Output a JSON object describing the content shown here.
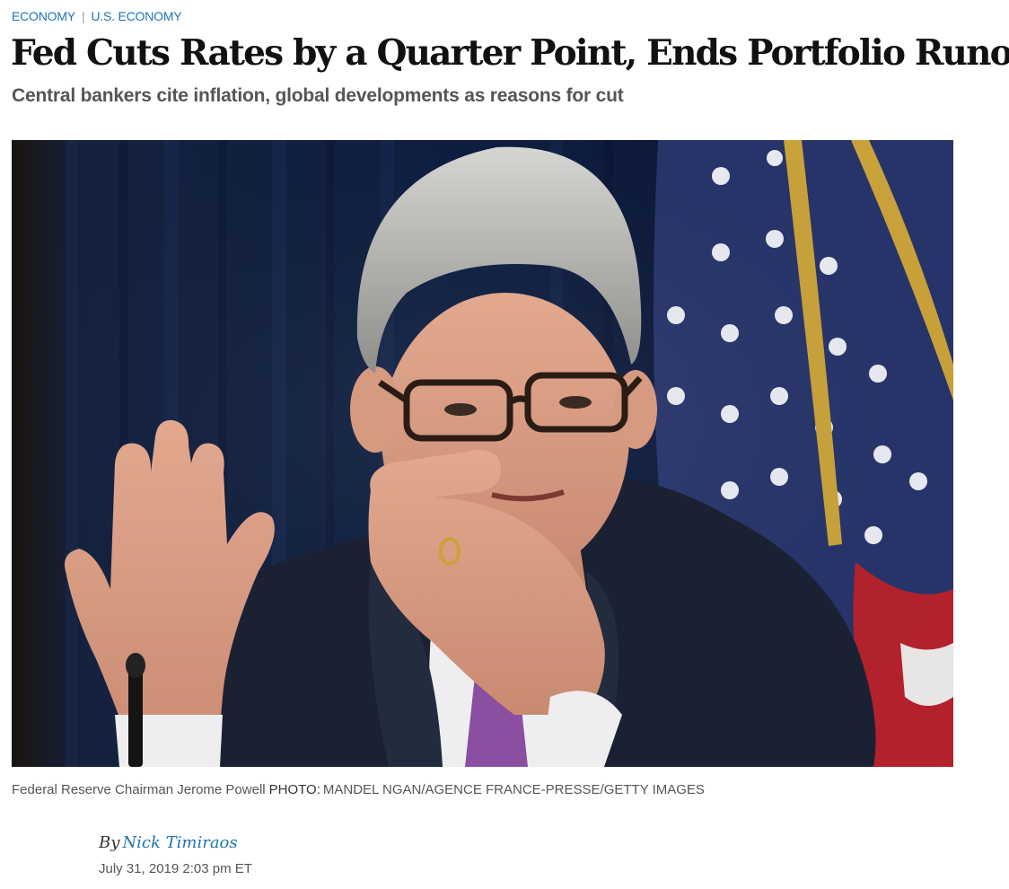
{
  "breadcrumbs": {
    "section": "ECONOMY",
    "separator": "|",
    "subsection": "U.S. ECONOMY"
  },
  "article": {
    "headline": "Fed Cuts Rates by a Quarter Point, Ends Portfolio Runoff",
    "dek": "Central bankers cite inflation, global developments as reasons for cut",
    "caption": "Federal Reserve Chairman Jerome Powell",
    "credit_label": "PHOTO:",
    "credit": "MANDEL NGAN/AGENCE FRANCE-PRESSE/GETTY IMAGES",
    "byline_prefix": "By",
    "author": "Nick Timiraos",
    "timestamp": "July 31, 2019 2:03 pm ET"
  },
  "colors": {
    "link": "#1e73b4",
    "headline": "#111111",
    "dek": "#555555",
    "flag_blue": "#27346a",
    "flag_red": "#b3222c",
    "curtain": "#0f1f45",
    "suit": "#1a2132",
    "tie": "#8a4fa0"
  }
}
